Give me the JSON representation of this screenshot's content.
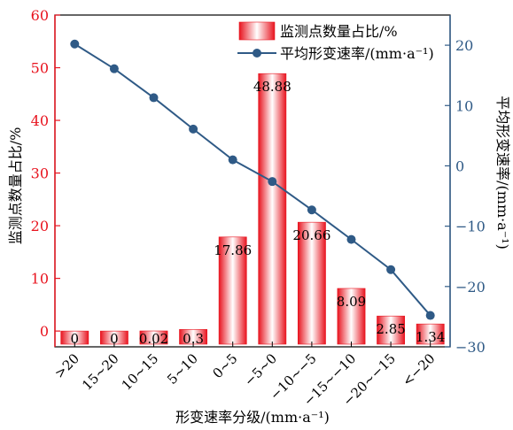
{
  "chart_data": {
    "type": "bar+line",
    "categories": [
      ">20",
      "15~20",
      "10~15",
      "5~10",
      "0~5",
      "−5~0",
      "−10~−5",
      "−15~−10",
      "−20~−15",
      "<−20"
    ],
    "series": [
      {
        "name": "监测点数量占比/%",
        "type": "bar",
        "axis": "left",
        "values": [
          0,
          0,
          0.02,
          0.3,
          17.86,
          48.88,
          20.66,
          8.09,
          2.85,
          1.34
        ],
        "labels": [
          "0",
          "0",
          "0.02",
          "0.3",
          "17.86",
          "48.88",
          "20.66",
          "8.09",
          "2.85",
          "1.34"
        ]
      },
      {
        "name": "平均形变速率/(mm·a⁻¹)",
        "type": "line",
        "axis": "right",
        "values": [
          20.2,
          16.1,
          11.3,
          6.1,
          1.0,
          -2.6,
          -7.3,
          -12.2,
          -17.2,
          -24.8
        ]
      }
    ],
    "xlabel": "形变速率分级/(mm·a⁻¹)",
    "ylabel_left": "监测点数量占比/%",
    "ylabel_right": "平均形变速率/(mm·a⁻¹)",
    "ylim_left": [
      -3,
      60
    ],
    "yticks_left": [
      0,
      10,
      20,
      30,
      40,
      50,
      60
    ],
    "ylim_right": [
      -30,
      25
    ],
    "yticks_right": [
      -30,
      -20,
      -10,
      0,
      10,
      20
    ],
    "yticklabels_right": [
      "−30",
      "−20",
      "−10",
      "0",
      "10",
      "20"
    ],
    "legend_position": "top-right",
    "grid": false,
    "colors": {
      "bar_edge": "#e8141f",
      "bar_center": "#ffffff",
      "line": "#2f5a86",
      "left_axis": "#e8141f",
      "right_axis": "#2f5a86",
      "frame": "#000000"
    }
  }
}
